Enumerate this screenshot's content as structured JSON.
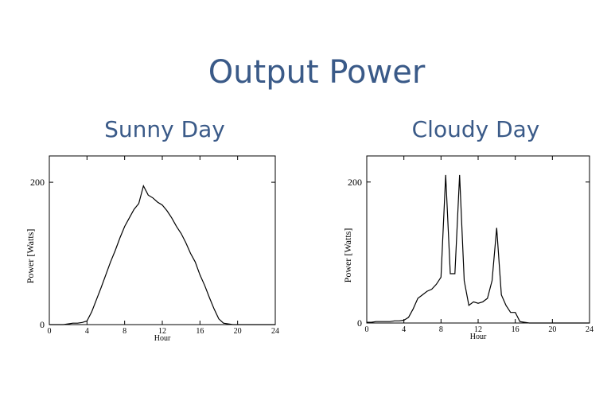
{
  "title": "Output Power",
  "chart_data": [
    {
      "type": "line",
      "title": "Sunny Day",
      "x_label": "Hour",
      "y_label": "Power [Watts]",
      "x": [
        0,
        0.5,
        1,
        1.5,
        2,
        2.5,
        3,
        3.5,
        4,
        4.5,
        5,
        5.5,
        6,
        6.5,
        7,
        7.5,
        8,
        8.5,
        9,
        9.5,
        10,
        10.5,
        11,
        11.5,
        12,
        12.5,
        13,
        13.5,
        14,
        14.5,
        15,
        15.5,
        16,
        16.5,
        17,
        17.5,
        18,
        18.5,
        19,
        19.5,
        20,
        20.5,
        21,
        21.5,
        22,
        22.5,
        23,
        23.5,
        24
      ],
      "values": [
        0,
        0,
        0,
        0,
        1,
        2,
        2,
        3,
        5,
        18,
        35,
        52,
        70,
        88,
        104,
        122,
        138,
        150,
        162,
        170,
        195,
        182,
        178,
        172,
        168,
        160,
        150,
        138,
        128,
        115,
        100,
        88,
        70,
        55,
        38,
        22,
        8,
        2,
        1,
        0,
        0,
        0,
        0,
        0,
        0,
        0,
        0,
        0,
        0
      ],
      "color": "#000000",
      "xlim": [
        0,
        24
      ],
      "xticks": [
        0,
        4,
        8,
        12,
        16,
        20,
        24
      ],
      "ylim": [
        0,
        237
      ],
      "yticks": [
        0,
        200
      ]
    },
    {
      "type": "line",
      "title": "Cloudy Day",
      "x_label": "Hour",
      "y_label": "Power [Watts]",
      "x": [
        0,
        0.5,
        1,
        1.5,
        2,
        2.5,
        3,
        3.5,
        4,
        4.5,
        5,
        5.5,
        6,
        6.5,
        7,
        7.5,
        8,
        8.5,
        9,
        9.5,
        10,
        10.5,
        11,
        11.5,
        12,
        12.5,
        13,
        13.5,
        14,
        14.5,
        15,
        15.5,
        16,
        16.5,
        17,
        17.5,
        18,
        18.5,
        19,
        19.5,
        20,
        20.5,
        21,
        21.5,
        22,
        22.5,
        23,
        23.5,
        24
      ],
      "values": [
        1,
        1,
        2,
        2,
        2,
        2,
        3,
        3,
        4,
        8,
        20,
        35,
        40,
        45,
        48,
        55,
        65,
        210,
        70,
        70,
        210,
        60,
        25,
        30,
        28,
        30,
        35,
        60,
        135,
        40,
        25,
        15,
        15,
        2,
        1,
        0,
        0,
        0,
        0,
        0,
        0,
        0,
        0,
        0,
        0,
        0,
        0,
        0,
        0
      ],
      "color": "#000000",
      "xlim": [
        0,
        24
      ],
      "xticks": [
        0,
        4,
        8,
        12,
        16,
        20,
        24
      ],
      "ylim": [
        0,
        237
      ],
      "yticks": [
        0,
        200
      ]
    }
  ]
}
